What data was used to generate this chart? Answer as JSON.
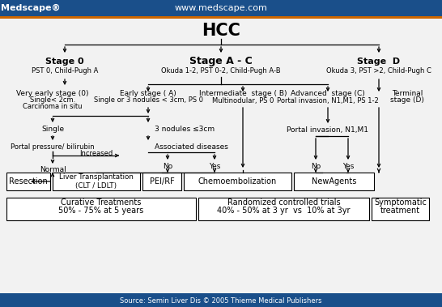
{
  "title": "HCC",
  "medscape_text": "Medscape®",
  "website_text": "www.medscape.com",
  "source_text": "Source: Semin Liver Dis © 2005 Thieme Medical Publishers",
  "bg_color": "#f2f2f2",
  "header_bg": "#1a4f8a",
  "orange_bar": "#cc6600",
  "footer_bg": "#1a4f8a",
  "stage0_title": "Stage 0",
  "stage0_sub": "PST 0, Child-Pugh A",
  "stageAC_title": "Stage A - C",
  "stageAC_sub": "Okuda 1-2, PST 0-2, Child-Pugh A-B",
  "stageD_title": "Stage  D",
  "stageD_sub": "Okuda 3, PST >2, Child-Pugh C",
  "very_early_title": "Very early stage (0)",
  "very_early_line1": "Single< 2cm.",
  "very_early_line2": "Carcinoma in situ",
  "early_title": "Early stage ( A)",
  "early_sub": "Single or 3 nodules < 3cm, PS 0",
  "intermediate_title": "Intermediate  stage ( B)",
  "intermediate_sub": "Multinodular, PS 0",
  "advanced_title": "Advanced  stage (C)",
  "advanced_sub": "Portal invasion, N1,M1, PS 1-2",
  "terminal_title": "Terminal",
  "terminal_sub": "stage (D)",
  "single_text": "Single",
  "portal_pressure_text": "Portal pressure/ bilirubin",
  "normal_text": "Normal",
  "increased_text": "Increased",
  "three_nodules_text": "3 nodules ≤3cm",
  "assoc_diseases_text": "Associated diseases",
  "no_text": "No",
  "yes_text": "Yes",
  "portal_invasion_text": "Portal invasion, N1,M1",
  "no2_text": "No",
  "yes2_text": "Yes",
  "box_resection": "Resection",
  "box_liver_transplant": "Liver Transplantation\n(CLT / LDLT)",
  "box_peirf": "PEI/RF",
  "box_chemo": "Chemoembolization",
  "box_new_agents": "NewAgents",
  "box_curative_line1": "Curative Treatments",
  "box_curative_line2": "50% - 75% at 5 years",
  "box_randomized_line1": "Randomized controlled trials",
  "box_randomized_line2": "40% - 50% at 3 yr  vs  10% at 3yr",
  "box_symptomatic_line1": "Symptomatic",
  "box_symptomatic_line2": "treatment"
}
